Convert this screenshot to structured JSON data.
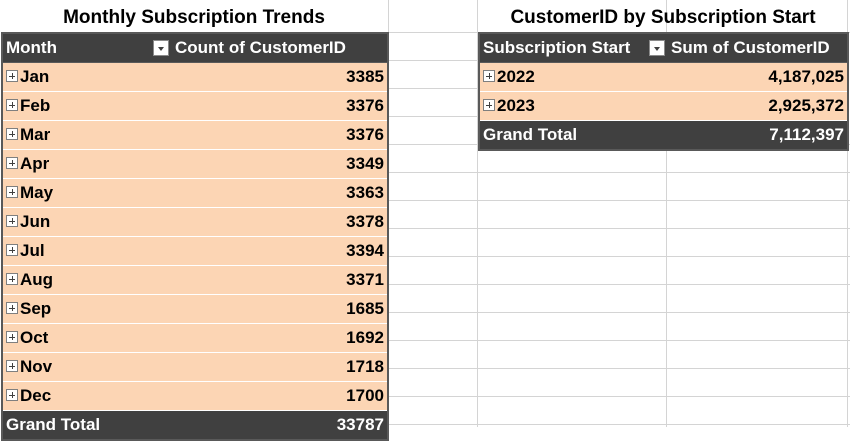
{
  "pivot_monthly": {
    "title": "Monthly Subscription Trends",
    "header": {
      "row_label": "Month",
      "value_label": "Count of CustomerID"
    },
    "rows": [
      {
        "label": "Jan",
        "value": "3385"
      },
      {
        "label": "Feb",
        "value": "3376"
      },
      {
        "label": "Mar",
        "value": "3376"
      },
      {
        "label": "Apr",
        "value": "3349"
      },
      {
        "label": "May",
        "value": "3363"
      },
      {
        "label": "Jun",
        "value": "3378"
      },
      {
        "label": "Jul",
        "value": "3394"
      },
      {
        "label": "Aug",
        "value": "3371"
      },
      {
        "label": "Sep",
        "value": "1685"
      },
      {
        "label": "Oct",
        "value": "1692"
      },
      {
        "label": "Nov",
        "value": "1718"
      },
      {
        "label": "Dec",
        "value": "1700"
      }
    ],
    "total": {
      "label": "Grand Total",
      "value": "33787"
    }
  },
  "pivot_start": {
    "title": "CustomerID by Subscription Start",
    "header": {
      "row_label": "Subscription Start",
      "value_label": "Sum of CustomerID"
    },
    "rows": [
      {
        "label": "2022",
        "value": "4,187,025"
      },
      {
        "label": "2023",
        "value": "2,925,372"
      }
    ],
    "total": {
      "label": "Grand Total",
      "value": "7,112,397"
    }
  },
  "colors": {
    "header_bg": "#404040",
    "row_bg": "#fcd5b4",
    "gridline": "#d4d4d4"
  },
  "icons": {
    "expand": "plus-box-icon",
    "filter": "dropdown-arrow-icon"
  }
}
